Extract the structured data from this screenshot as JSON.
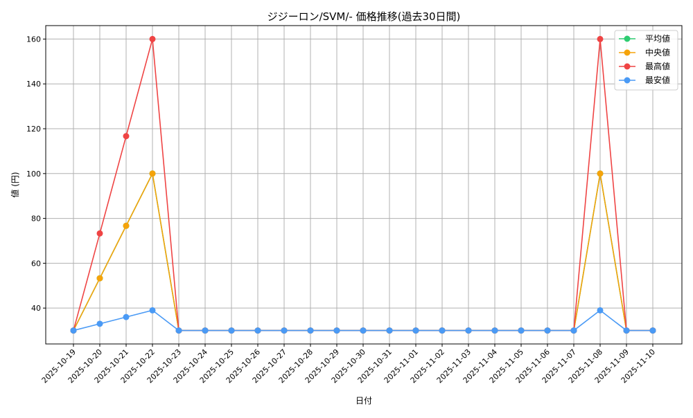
{
  "chart_data": {
    "type": "line",
    "title": "ジジーロン/SVM/- 価格推移(過去30日間)",
    "xlabel": "日付",
    "ylabel": "値 (円)",
    "categories": [
      "2025-10-19",
      "2025-10-20",
      "2025-10-21",
      "2025-10-22",
      "2025-10-23",
      "2025-10-24",
      "2025-10-25",
      "2025-10-26",
      "2025-10-27",
      "2025-10-28",
      "2025-10-29",
      "2025-10-30",
      "2025-10-31",
      "2025-11-01",
      "2025-11-02",
      "2025-11-03",
      "2025-11-04",
      "2025-11-05",
      "2025-11-06",
      "2025-11-07",
      "2025-11-08",
      "2025-11-09",
      "2025-11-10"
    ],
    "ylim": [
      24,
      166
    ],
    "yticks": [
      40,
      60,
      80,
      100,
      120,
      140,
      160
    ],
    "grid": true,
    "legend_position": "top-right",
    "series": [
      {
        "name": "平均値",
        "color": "#2ecc71",
        "values": [
          30,
          53.3,
          76.7,
          100,
          30,
          30,
          30,
          30,
          30,
          30,
          30,
          30,
          30,
          30,
          30,
          30,
          30,
          30,
          30,
          30,
          100,
          30,
          30
        ]
      },
      {
        "name": "中央値",
        "color": "#f5a30a",
        "values": [
          30,
          53.3,
          76.7,
          100,
          30,
          30,
          30,
          30,
          30,
          30,
          30,
          30,
          30,
          30,
          30,
          30,
          30,
          30,
          30,
          30,
          100,
          30,
          30
        ]
      },
      {
        "name": "最高値",
        "color": "#ef4444",
        "values": [
          30,
          73.3,
          116.7,
          160,
          30,
          30,
          30,
          30,
          30,
          30,
          30,
          30,
          30,
          30,
          30,
          30,
          30,
          30,
          30,
          30,
          160,
          30,
          30
        ]
      },
      {
        "name": "最安値",
        "color": "#4a9af5",
        "values": [
          30,
          33,
          36,
          39,
          30,
          30,
          30,
          30,
          30,
          30,
          30,
          30,
          30,
          30,
          30,
          30,
          30,
          30,
          30,
          30,
          39,
          30,
          30
        ]
      }
    ]
  }
}
